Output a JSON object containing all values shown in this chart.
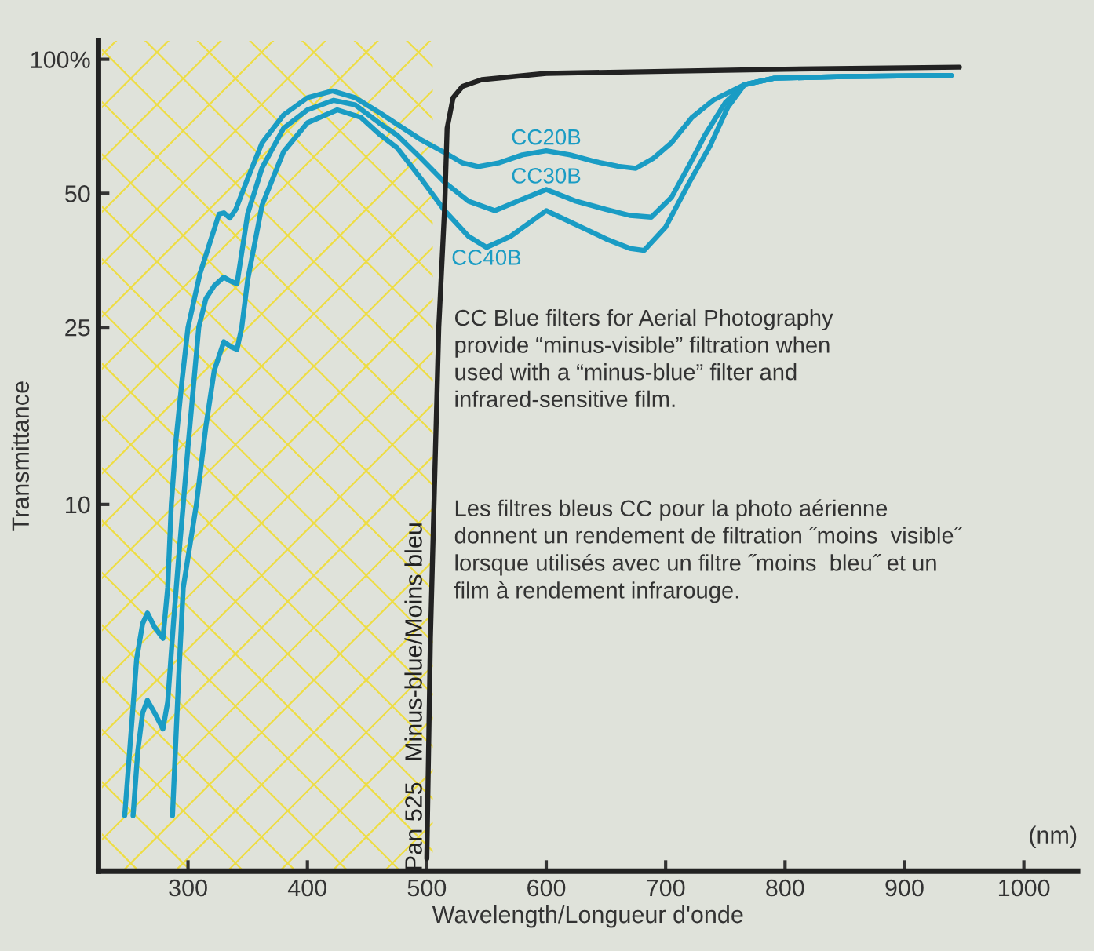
{
  "chart_data": {
    "type": "line",
    "xlabel": "Wavelength/Longueur d'onde",
    "ylabel": "Transmittance",
    "log": "y",
    "xlim": [
      225,
      1045
    ],
    "xticks": [
      300,
      400,
      500,
      600,
      700,
      800,
      900,
      1000
    ],
    "ylim": [
      1.5,
      110
    ],
    "yticks": [
      10,
      25,
      50,
      {
        "value": 100,
        "label": "100%"
      }
    ],
    "grid": false,
    "legend": false,
    "line_style": "solid",
    "marker": "none",
    "bands": [
      {
        "axis": "x",
        "from": 228,
        "to": 505,
        "color": "#eedd44"
      }
    ],
    "series": [
      {
        "name": "CC20B",
        "color": "#1a9cc4",
        "x": [
          247,
          252,
          257,
          262,
          266,
          272,
          279,
          283,
          286,
          290,
          295,
          300,
          310,
          320,
          326,
          330,
          335,
          340,
          350,
          362,
          380,
          400,
          421,
          440,
          460,
          475,
          495,
          515,
          530,
          543,
          560,
          580,
          600,
          620,
          640,
          660,
          675,
          690,
          705,
          722,
          740,
          766,
          791,
          850,
          939
        ],
        "values": [
          2.0,
          3.0,
          4.5,
          5.4,
          5.7,
          5.3,
          5.0,
          6.5,
          10,
          14,
          19,
          25,
          33,
          40,
          44.9,
          45.2,
          44,
          46,
          54,
          64.9,
          75,
          82,
          84.9,
          82,
          76,
          71.5,
          66,
          61.7,
          58.5,
          57.4,
          58.5,
          61,
          62.3,
          61,
          59,
          57.5,
          56.9,
          60,
          65,
          74,
          81,
          87.7,
          90.7,
          91.5,
          92
        ]
      },
      {
        "name": "CC30B",
        "color": "#1a9cc4",
        "x": [
          254,
          258,
          262,
          266,
          272,
          279,
          283,
          288,
          292,
          296,
          300,
          305,
          309,
          315,
          322,
          330,
          335,
          341,
          350,
          362,
          380,
          400,
          422,
          440,
          460,
          475,
          495,
          515,
          535,
          557,
          576,
          600,
          625,
          650,
          670,
          688,
          705,
          720,
          733,
          750,
          766,
          791,
          850,
          939
        ],
        "values": [
          2.0,
          2.8,
          3.4,
          3.63,
          3.4,
          3.13,
          3.6,
          5.5,
          7.5,
          10,
          13.5,
          19,
          25,
          29,
          31,
          32.4,
          31.8,
          31.3,
          45,
          57,
          70,
          77,
          80.9,
          79,
          72,
          67.6,
          60,
          52.9,
          48,
          45.7,
          48,
          51,
          48,
          46,
          44.6,
          44.2,
          49,
          58,
          67.6,
          80,
          87.7,
          90.7,
          91.5,
          92
        ]
      },
      {
        "name": "CC40B",
        "color": "#1a9cc4",
        "x": [
          287,
          292,
          296,
          307,
          315,
          322,
          330,
          336,
          341,
          345,
          350,
          362,
          380,
          400,
          425,
          445,
          460,
          475,
          495,
          515,
          535,
          550,
          570,
          600,
          625,
          650,
          670,
          682,
          700,
          720,
          737,
          752,
          766,
          791,
          850,
          939
        ],
        "values": [
          2.0,
          4,
          6.5,
          10,
          15,
          20,
          23.2,
          22.6,
          22.3,
          25,
          32,
          47,
          62,
          72,
          77,
          74,
          68,
          63.3,
          54,
          45.7,
          40,
          37.8,
          40,
          45.7,
          42.5,
          39.5,
          37.6,
          37.2,
          42,
          53,
          63.8,
          78,
          87.7,
          90.7,
          91.5,
          92
        ]
      },
      {
        "name": "Pan 525   Minus-blue/Moins bleu",
        "color": "#222222",
        "x": [
          500,
          503,
          506,
          510,
          515,
          517,
          522,
          530,
          546,
          600,
          700,
          800,
          946
        ],
        "values": [
          1.6,
          5,
          10,
          25,
          47,
          70,
          82,
          87,
          90,
          93,
          94,
          95,
          96
        ]
      }
    ],
    "annotations": [
      "(nm)",
      "CC Blue filters for Aerial Photography\nprovide “minus-visible” filtration when\nused with a “minus-blue” filter and\ninfrared-sensitive film.",
      "Les filtres bleus CC pour la photo aérienne\ndonnent un rendement de filtration ˝moins  visible˝\nlorsque utilisés avec un filtre ˝moins  bleu˝ et un\nfilm à rendement infrarouge."
    ]
  }
}
